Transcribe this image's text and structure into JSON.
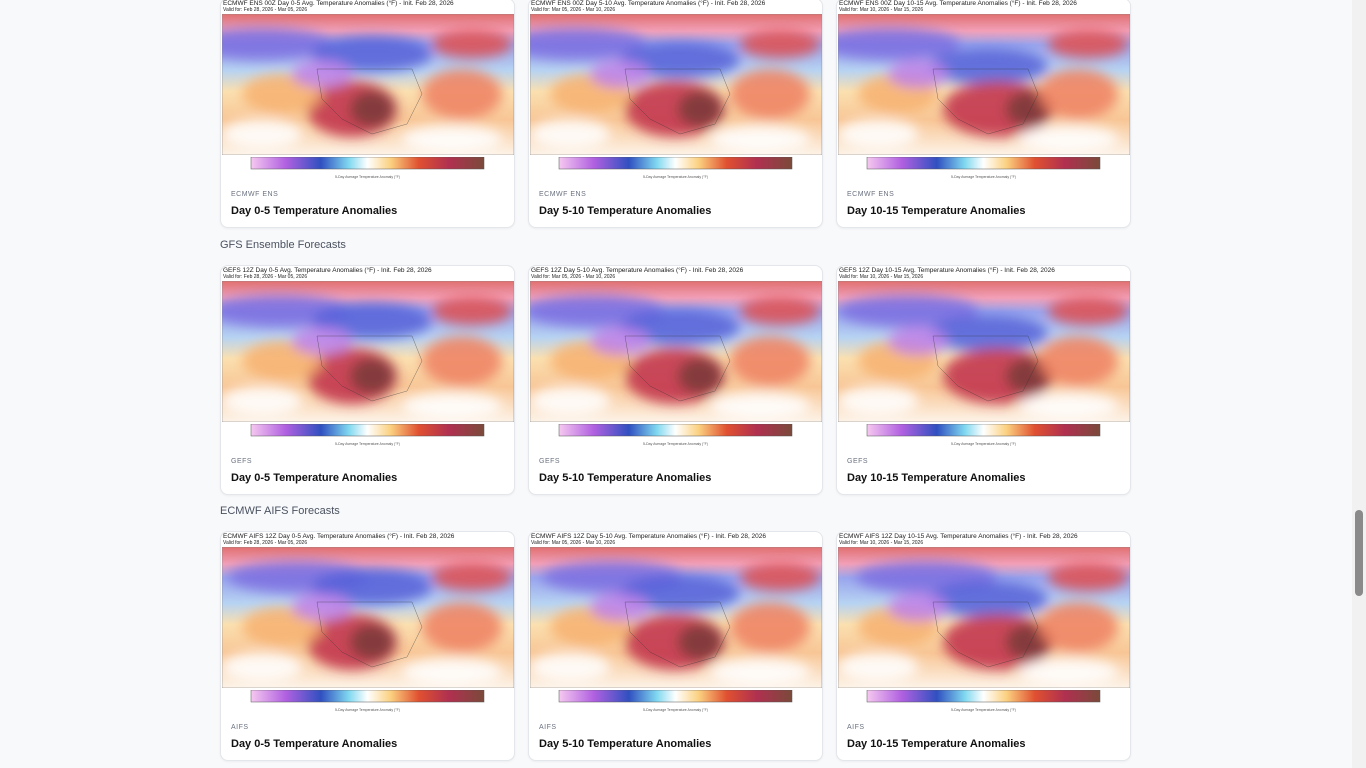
{
  "sections": [
    {
      "cards": [
        {
          "map_title": "ECMWF ENS 00Z Day 0-5 Avg. Temperature Anomalies (°F) - Init. Feb 28, 2026",
          "map_valid": "Valid for: Feb 28, 2026 - Mar 05, 2026",
          "colorbar_label": "5-Day Average Temperature Anomaly (°F)",
          "source": "ECMWF ENS",
          "title": "Day 0-5 Temperature Anomalies"
        },
        {
          "map_title": "ECMWF ENS 00Z Day 5-10 Avg. Temperature Anomalies (°F) - Init. Feb 28, 2026",
          "map_valid": "Valid for: Mar 05, 2026 - Mar 10, 2026",
          "colorbar_label": "5-Day Average Temperature Anomaly (°F)",
          "source": "ECMWF ENS",
          "title": "Day 5-10 Temperature Anomalies"
        },
        {
          "map_title": "ECMWF ENS 00Z Day 10-15 Avg. Temperature Anomalies (°F) - Init. Feb 28, 2026",
          "map_valid": "Valid for: Mar 10, 2026 - Mar 15, 2026",
          "colorbar_label": "5-Day Average Temperature Anomaly (°F)",
          "source": "ECMWF ENS",
          "title": "Day 10-15 Temperature Anomalies"
        }
      ]
    },
    {
      "heading": "GFS Ensemble Forecasts",
      "cards": [
        {
          "map_title": "GEFS 12Z Day 0-5 Avg. Temperature Anomalies (°F) - Init. Feb 28, 2026",
          "map_valid": "Valid for: Feb 28, 2026 - Mar 05, 2026",
          "colorbar_label": "5-Day Average Temperature Anomaly (°F)",
          "source": "GEFS",
          "title": "Day 0-5 Temperature Anomalies"
        },
        {
          "map_title": "GEFS 12Z Day 5-10 Avg. Temperature Anomalies (°F) - Init. Feb 28, 2026",
          "map_valid": "Valid for: Mar 05, 2026 - Mar 10, 2026",
          "colorbar_label": "5-Day Average Temperature Anomaly (°F)",
          "source": "GEFS",
          "title": "Day 5-10 Temperature Anomalies"
        },
        {
          "map_title": "GEFS 12Z Day 10-15 Avg. Temperature Anomalies (°F) - Init. Feb 28, 2026",
          "map_valid": "Valid for: Mar 10, 2026 - Mar 15, 2026",
          "colorbar_label": "5-Day Average Temperature Anomaly (°F)",
          "source": "GEFS",
          "title": "Day 10-15 Temperature Anomalies"
        }
      ]
    },
    {
      "heading": "ECMWF AIFS Forecasts",
      "cards": [
        {
          "map_title": "ECMWF AIFS 12Z Day 0-5 Avg. Temperature Anomalies (°F) - Init. Feb 28, 2026",
          "map_valid": "Valid for: Feb 28, 2026 - Mar 05, 2026",
          "colorbar_label": "5-Day Average Temperature Anomaly (°F)",
          "source": "AIFS",
          "title": "Day 0-5 Temperature Anomalies"
        },
        {
          "map_title": "ECMWF AIFS 12Z Day 5-10 Avg. Temperature Anomalies (°F) - Init. Feb 28, 2026",
          "map_valid": "Valid for: Mar 05, 2026 - Mar 10, 2026",
          "colorbar_label": "5-Day Average Temperature Anomaly (°F)",
          "source": "AIFS",
          "title": "Day 5-10 Temperature Anomalies"
        },
        {
          "map_title": "ECMWF AIFS 12Z Day 10-15 Avg. Temperature Anomalies (°F) - Init. Feb 28, 2026",
          "map_valid": "Valid for: Mar 10, 2026 - Mar 15, 2026",
          "colorbar_label": "5-Day Average Temperature Anomaly (°F)",
          "source": "AIFS",
          "title": "Day 10-15 Temperature Anomalies"
        }
      ]
    }
  ]
}
